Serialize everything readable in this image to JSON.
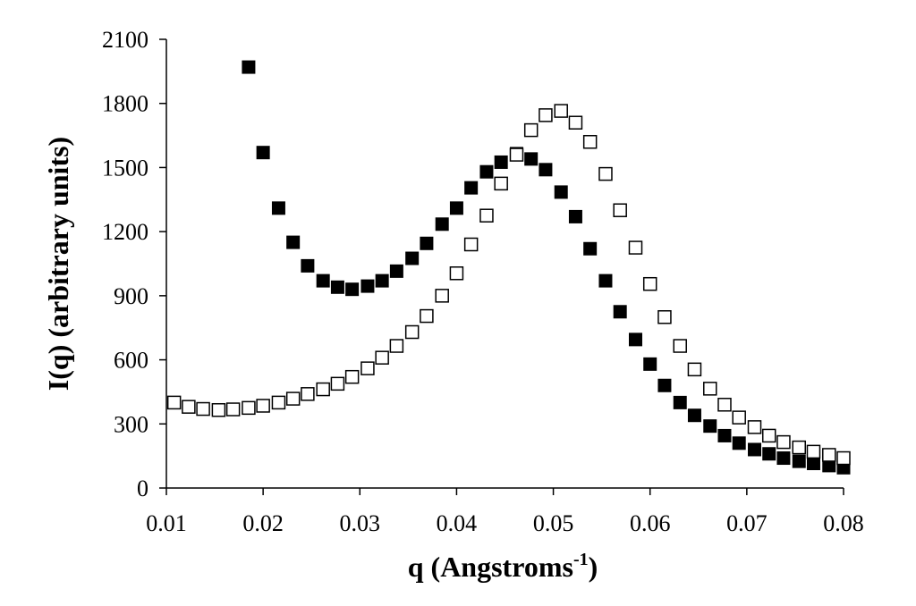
{
  "chart_data": {
    "type": "scatter",
    "xlabel": "q (Angstroms",
    "xlabel_sup": "-1",
    "xlabel_end": ")",
    "ylabel": "I(q) (arbitrary units)",
    "xlim": [
      0.01,
      0.08
    ],
    "ylim": [
      0,
      2100
    ],
    "x_ticks": [
      0.01,
      0.02,
      0.03,
      0.04,
      0.05,
      0.06,
      0.07,
      0.08
    ],
    "x_tick_labels": [
      "0.01",
      "0.02",
      "0.03",
      "0.04",
      "0.05",
      "0.06",
      "0.07",
      "0.08"
    ],
    "y_ticks": [
      0,
      300,
      600,
      900,
      1200,
      1500,
      1800,
      2100
    ],
    "y_tick_labels": [
      "0",
      "300",
      "600",
      "900",
      "1200",
      "1500",
      "1800",
      "2100"
    ],
    "grid": false,
    "legend": "none",
    "series": [
      {
        "marker": "filled-square",
        "color": "#000000",
        "x": [
          0.0185,
          0.02,
          0.0216,
          0.0231,
          0.0246,
          0.0262,
          0.0277,
          0.0292,
          0.0308,
          0.0323,
          0.0338,
          0.0354,
          0.0369,
          0.0385,
          0.04,
          0.0415,
          0.0431,
          0.0446,
          0.0462,
          0.0477,
          0.0492,
          0.0508,
          0.0523,
          0.0538,
          0.0554,
          0.0569,
          0.0585,
          0.06,
          0.0615,
          0.0631,
          0.0646,
          0.0662,
          0.0677,
          0.0692,
          0.0708,
          0.0723,
          0.0738,
          0.0754,
          0.0769,
          0.0785,
          0.08
        ],
        "y": [
          1970,
          1570,
          1310,
          1150,
          1040,
          970,
          940,
          930,
          945,
          970,
          1015,
          1075,
          1145,
          1235,
          1310,
          1405,
          1480,
          1525,
          1565,
          1540,
          1490,
          1385,
          1270,
          1120,
          970,
          825,
          695,
          580,
          480,
          400,
          340,
          290,
          245,
          210,
          180,
          160,
          140,
          125,
          115,
          105,
          95
        ]
      },
      {
        "marker": "open-square",
        "color": "#000000",
        "x": [
          0.0108,
          0.0123,
          0.0138,
          0.0154,
          0.0169,
          0.0185,
          0.02,
          0.0216,
          0.0231,
          0.0246,
          0.0262,
          0.0277,
          0.0292,
          0.0308,
          0.0323,
          0.0338,
          0.0354,
          0.0369,
          0.0385,
          0.04,
          0.0415,
          0.0431,
          0.0446,
          0.0462,
          0.0477,
          0.0492,
          0.0508,
          0.0523,
          0.0538,
          0.0554,
          0.0569,
          0.0585,
          0.06,
          0.0615,
          0.0631,
          0.0646,
          0.0662,
          0.0677,
          0.0692,
          0.0708,
          0.0723,
          0.0738,
          0.0754,
          0.0769,
          0.0785,
          0.08
        ],
        "y": [
          400,
          380,
          370,
          365,
          368,
          375,
          385,
          400,
          418,
          440,
          462,
          488,
          520,
          560,
          610,
          665,
          730,
          805,
          900,
          1005,
          1140,
          1275,
          1425,
          1560,
          1675,
          1745,
          1765,
          1710,
          1620,
          1470,
          1300,
          1125,
          955,
          800,
          665,
          555,
          465,
          390,
          330,
          285,
          245,
          215,
          190,
          170,
          155,
          140
        ]
      }
    ]
  }
}
